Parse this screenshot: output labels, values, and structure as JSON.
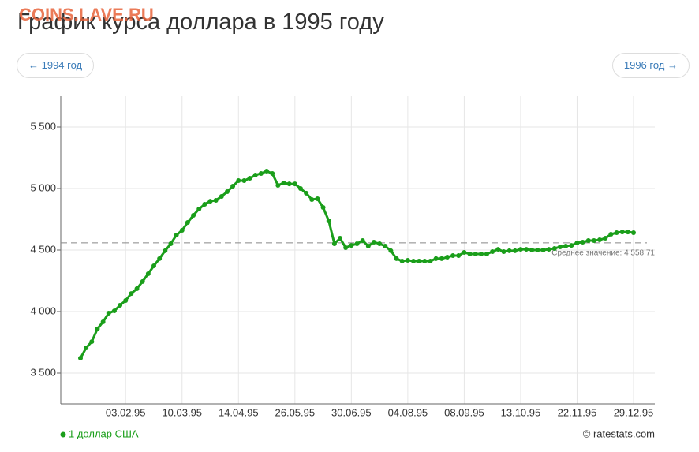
{
  "chart_data": {
    "type": "line",
    "title": "График курса доллара в 1995 году",
    "watermark": "COINS.LAVE.RU",
    "prev_link": "← 1994 год",
    "next_link": "1996 год →",
    "source": "© ratestats.com",
    "categories": [
      null,
      null,
      null,
      null,
      null,
      null,
      null,
      null,
      "03.02.95",
      null,
      null,
      null,
      null,
      null,
      null,
      null,
      null,
      null,
      "10.03.95",
      null,
      null,
      null,
      null,
      null,
      null,
      null,
      null,
      null,
      "14.04.95",
      null,
      null,
      null,
      null,
      null,
      null,
      null,
      null,
      null,
      "26.05.95",
      null,
      null,
      null,
      null,
      null,
      null,
      null,
      null,
      null,
      "30.06.95",
      null,
      null,
      null,
      null,
      null,
      null,
      null,
      null,
      null,
      "04.08.95",
      null,
      null,
      null,
      null,
      null,
      null,
      null,
      null,
      null,
      "08.09.95",
      null,
      null,
      null,
      null,
      null,
      null,
      null,
      null,
      null,
      "13.10.95",
      null,
      null,
      null,
      null,
      null,
      null,
      null,
      null,
      null,
      "22.11.95",
      null,
      null,
      null,
      null,
      null,
      null,
      null,
      null,
      null,
      "29.12.95"
    ],
    "series": [
      {
        "name": "1 доллар США",
        "color": "#1a9e1a",
        "values": [
          3622,
          3705,
          3756,
          3860,
          3917,
          3987,
          4006,
          4051,
          4090,
          4147,
          4186,
          4244,
          4308,
          4372,
          4430,
          4494,
          4551,
          4622,
          4660,
          4724,
          4782,
          4833,
          4872,
          4897,
          4904,
          4936,
          4974,
          5019,
          5064,
          5064,
          5083,
          5109,
          5122,
          5141,
          5122,
          5026,
          5045,
          5038,
          5038,
          5000,
          4962,
          4910,
          4917,
          4846,
          4737,
          4551,
          4596,
          4519,
          4538,
          4551,
          4577,
          4532,
          4564,
          4551,
          4532,
          4494,
          4430,
          4410,
          4417,
          4410,
          4410,
          4410,
          4410,
          4430,
          4430,
          4442,
          4455,
          4455,
          4481,
          4468,
          4468,
          4468,
          4468,
          4487,
          4506,
          4487,
          4494,
          4494,
          4506,
          4506,
          4500,
          4500,
          4500,
          4506,
          4513,
          4526,
          4532,
          4538,
          4558,
          4564,
          4577,
          4577,
          4583,
          4596,
          4628,
          4641,
          4647,
          4647,
          4641
        ]
      }
    ],
    "average": {
      "value": 4558.71,
      "label": "Среднее значение: 4 558,71"
    },
    "ylim": [
      3250,
      5750
    ],
    "yticks": [
      {
        "value": 3500,
        "label": "3 500"
      },
      {
        "value": 4000,
        "label": "4 000"
      },
      {
        "value": 4500,
        "label": "4 500"
      },
      {
        "value": 5000,
        "label": "5 000"
      },
      {
        "value": 5500,
        "label": "5 500"
      }
    ],
    "grid": true
  }
}
